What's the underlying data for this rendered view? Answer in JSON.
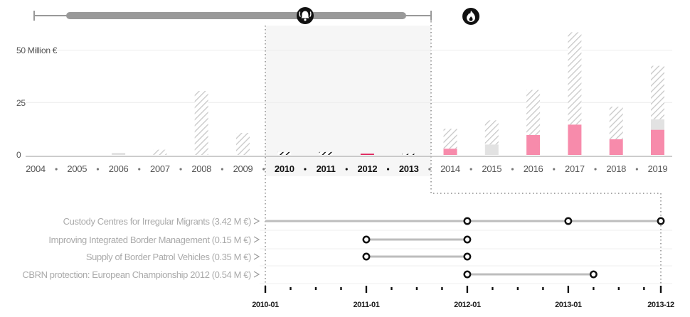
{
  "colors": {
    "pink": "#f78bab",
    "red": "#e0255d",
    "grey_fill": "#e2e2e2",
    "hatch_grey": "#c8c8c8",
    "axis": "#bbbbbb",
    "slider": "#999999",
    "text_muted": "#aaaaaa"
  },
  "icons": [
    "bell-icon",
    "flame-icon"
  ],
  "chart_data": [
    {
      "type": "bar",
      "stacked": true,
      "title": "",
      "ylabel": "",
      "y_tick_labels": [
        "50 Million €",
        "25",
        "0"
      ],
      "y_ticks": [
        50,
        25,
        0
      ],
      "ylim": [
        0,
        60
      ],
      "grid": true,
      "categories": [
        "2004",
        "2005",
        "2006",
        "2007",
        "2008",
        "2009",
        "2010",
        "2011",
        "2012",
        "2013",
        "2014",
        "2015",
        "2016",
        "2017",
        "2018",
        "2019"
      ],
      "selected_categories": [
        "2010",
        "2011",
        "2012",
        "2013"
      ],
      "series": [
        {
          "style": "solid-pink",
          "values": [
            0,
            0,
            0,
            0,
            0,
            0,
            0,
            0,
            0,
            0,
            3,
            0,
            9.5,
            14.5,
            7.5,
            12
          ]
        },
        {
          "style": "solid-grey",
          "values": [
            0,
            0,
            1,
            0,
            0,
            0,
            0,
            0,
            0,
            0,
            0,
            5,
            0,
            0,
            0,
            5
          ]
        },
        {
          "style": "hatched-grey",
          "values": [
            0,
            0,
            0,
            2.5,
            30.5,
            10.5,
            0,
            0,
            0,
            0,
            9.5,
            11.5,
            21.5,
            44,
            15.5,
            25.5
          ]
        },
        {
          "style": "selected-hatched-black",
          "values": [
            0,
            0,
            0,
            0,
            0,
            0,
            1.4,
            1.4,
            0,
            0.5,
            0,
            0,
            0,
            0,
            0,
            0
          ]
        },
        {
          "style": "selected-red",
          "values": [
            0,
            0,
            0,
            0,
            0,
            0,
            0,
            0,
            0.6,
            0,
            0,
            0,
            0,
            0,
            0,
            0
          ]
        }
      ],
      "range_slider": {
        "start": "2004",
        "end": "2013"
      }
    },
    {
      "type": "timeline",
      "title": "",
      "x_tick_labels": [
        "2010-01",
        "2011-01",
        "2012-01",
        "2013-01",
        "2013-12"
      ],
      "xlim": [
        "2010-01",
        "2013-12"
      ],
      "projects": [
        {
          "label": "Custody Centres for Irregular Migrants (3.42 M €)",
          "bar_start": "2010-01",
          "bar_end": "2013-12",
          "markers": [
            "2012-01",
            "2013-01",
            "2013-12"
          ]
        },
        {
          "label": "Improving Integrated Border Management (0.15 M €)",
          "bar_start": "2011-01",
          "bar_end": "2012-01",
          "markers": [
            "2011-01",
            "2012-01"
          ]
        },
        {
          "label": "Supply of Border Patrol Vehicles (0.35 M €)",
          "bar_start": "2011-01",
          "bar_end": "2012-01",
          "markers": [
            "2011-01",
            "2012-01"
          ]
        },
        {
          "label": "CBRN protection: European Championship 2012 (0.54 M €)",
          "bar_start": "2012-01",
          "bar_end": "2013-04",
          "markers": [
            "2012-01",
            "2013-04"
          ]
        }
      ]
    }
  ]
}
